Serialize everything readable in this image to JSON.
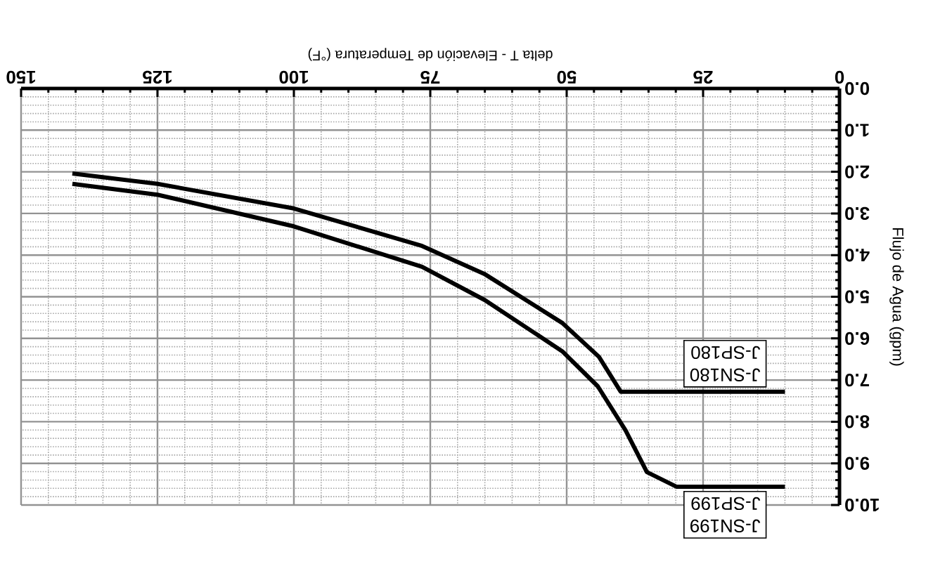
{
  "chart_data": {
    "type": "line",
    "xlabel": "delta T - Elevación de Temperatura (°F)",
    "ylabel": "Flujo de Agua (gpm)",
    "series": [
      {
        "color": "#000000",
        "x": [
          10,
          29.9,
          35.3,
          39.2,
          44.3,
          50.8,
          65,
          76.5,
          100,
          125,
          140.6
        ],
        "values": [
          9.56,
          9.56,
          9.21,
          8.21,
          7.15,
          6.31,
          5.08,
          4.28,
          3.31,
          2.55,
          2.29
        ]
      },
      {
        "color": "#000000",
        "x": [
          10,
          40.1,
          44.1,
          50.8,
          65.1,
          76.5,
          100,
          125,
          140.6
        ],
        "values": [
          7.28,
          7.28,
          6.44,
          5.63,
          4.45,
          3.78,
          2.88,
          2.29,
          2.04
        ]
      }
    ],
    "annotations": [
      "J-SN199",
      "J-SP199",
      "J-SN180",
      "J-SP180"
    ],
    "xlim": [
      150,
      0
    ],
    "xticks": [
      0,
      25,
      50,
      75,
      100,
      125,
      150
    ],
    "ylim": [
      10,
      0
    ],
    "yticks": [
      {
        "value": 0,
        "label": "0.0"
      },
      {
        "value": 1,
        "label": "1.0"
      },
      {
        "value": 2,
        "label": "2.0"
      },
      {
        "value": 3,
        "label": "3.0"
      },
      {
        "value": 4,
        "label": "4.0"
      },
      {
        "value": 5,
        "label": "5.0"
      },
      {
        "value": 6,
        "label": "6.0"
      },
      {
        "value": 7,
        "label": "7.0"
      },
      {
        "value": 8,
        "label": "8.0"
      },
      {
        "value": 9,
        "label": "9.0"
      },
      {
        "value": 10,
        "label": "10.0"
      }
    ],
    "grid": true,
    "marker": "none",
    "line_style": "solid"
  }
}
